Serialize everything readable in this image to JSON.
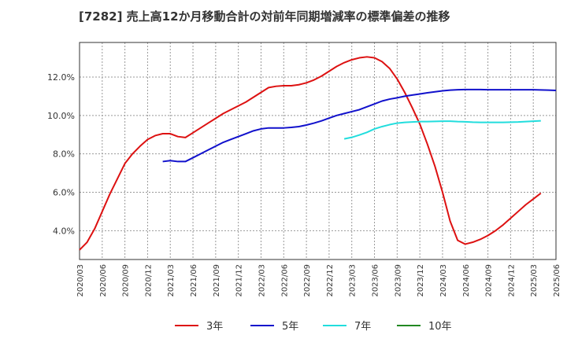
{
  "chart_data": {
    "type": "line",
    "title": "[7282]  売上高12か月移動合計の対前年同期増減率の標準偏差の推移",
    "xlabel": "",
    "ylabel": "",
    "x_ticks": [
      "2020/03",
      "2020/06",
      "2020/09",
      "2020/12",
      "2021/03",
      "2021/06",
      "2021/09",
      "2021/12",
      "2022/03",
      "2022/06",
      "2022/09",
      "2022/12",
      "2023/03",
      "2023/06",
      "2023/09",
      "2023/12",
      "2024/03",
      "2024/06",
      "2024/09",
      "2024/12",
      "2025/03",
      "2025/06"
    ],
    "y_ticks": [
      "4.0%",
      "6.0%",
      "8.0%",
      "10.0%",
      "12.0%"
    ],
    "ylim": [
      2.5,
      13.8
    ],
    "grid": true,
    "legend_position": "bottom",
    "series": [
      {
        "name": "3年",
        "color": "#dd1111",
        "start": "2020/03",
        "values": [
          3.0,
          3.4,
          4.1,
          5.0,
          5.9,
          6.7,
          7.5,
          8.0,
          8.4,
          8.75,
          8.95,
          9.05,
          9.05,
          8.9,
          8.85,
          9.1,
          9.35,
          9.6,
          9.85,
          10.1,
          10.3,
          10.5,
          10.7,
          10.95,
          11.2,
          11.45,
          11.52,
          11.55,
          11.55,
          11.6,
          11.7,
          11.85,
          12.05,
          12.3,
          12.55,
          12.75,
          12.9,
          13.0,
          13.05,
          13.0,
          12.8,
          12.45,
          11.9,
          11.2,
          10.4,
          9.55,
          8.5,
          7.35,
          6.0,
          4.5,
          3.5,
          3.3,
          3.4,
          3.55,
          3.75,
          4.0,
          4.3,
          4.65,
          5.0,
          5.35,
          5.65,
          5.95
        ]
      },
      {
        "name": "5年",
        "color": "#1111cc",
        "start": "2021/02",
        "values": [
          7.6,
          7.65,
          7.6,
          7.6,
          7.8,
          8.0,
          8.2,
          8.4,
          8.6,
          8.75,
          8.9,
          9.05,
          9.2,
          9.3,
          9.35,
          9.35,
          9.35,
          9.38,
          9.42,
          9.5,
          9.6,
          9.72,
          9.86,
          10.0,
          10.1,
          10.2,
          10.3,
          10.45,
          10.6,
          10.75,
          10.85,
          10.92,
          11.0,
          11.06,
          11.12,
          11.18,
          11.23,
          11.28,
          11.32,
          11.34,
          11.35,
          11.35,
          11.35,
          11.34,
          11.34,
          11.34,
          11.34,
          11.34,
          11.34,
          11.34,
          11.33,
          11.32,
          11.3
        ]
      },
      {
        "name": "7年",
        "color": "#22dddd",
        "start": "2023/02",
        "values": [
          8.78,
          8.86,
          8.98,
          9.12,
          9.3,
          9.42,
          9.52,
          9.6,
          9.64,
          9.66,
          9.68,
          9.68,
          9.69,
          9.7,
          9.7,
          9.68,
          9.67,
          9.65,
          9.64,
          9.64,
          9.64,
          9.64,
          9.65,
          9.66,
          9.68,
          9.7,
          9.72
        ]
      },
      {
        "name": "10年",
        "color": "#228822",
        "start": "2025/03",
        "values": []
      }
    ]
  }
}
